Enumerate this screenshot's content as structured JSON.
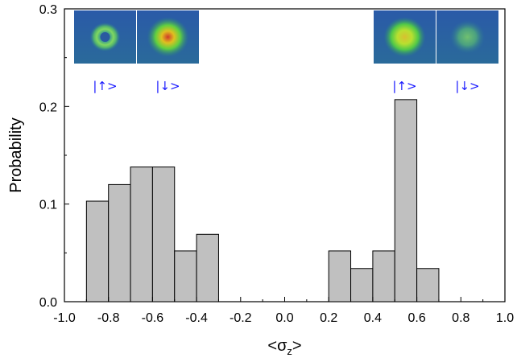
{
  "chart_data": {
    "type": "bar",
    "xlabel": "<σz>",
    "ylabel": "Probability",
    "xlim": [
      -1.0,
      1.0
    ],
    "ylim": [
      0.0,
      0.3
    ],
    "x_ticks": [
      "-1.0",
      "-0.8",
      "-0.6",
      "-0.4",
      "-0.2",
      "0.0",
      "0.2",
      "0.4",
      "0.6",
      "0.8",
      "1.0"
    ],
    "y_ticks": [
      "0.0",
      "0.1",
      "0.2",
      "0.3"
    ],
    "bin_width": 0.1,
    "bins": [
      {
        "x0": -0.9,
        "x1": -0.8,
        "value": 0.103
      },
      {
        "x0": -0.8,
        "x1": -0.7,
        "value": 0.12
      },
      {
        "x0": -0.7,
        "x1": -0.6,
        "value": 0.138
      },
      {
        "x0": -0.6,
        "x1": -0.5,
        "value": 0.138
      },
      {
        "x0": -0.5,
        "x1": -0.4,
        "value": 0.052
      },
      {
        "x0": -0.4,
        "x1": -0.3,
        "value": 0.069
      },
      {
        "x0": 0.2,
        "x1": 0.3,
        "value": 0.052
      },
      {
        "x0": 0.3,
        "x1": 0.4,
        "value": 0.034
      },
      {
        "x0": 0.4,
        "x1": 0.5,
        "value": 0.052
      },
      {
        "x0": 0.5,
        "x1": 0.6,
        "value": 0.207
      },
      {
        "x0": 0.6,
        "x1": 0.7,
        "value": 0.034
      }
    ],
    "bar_fill": "#c0c0c0",
    "bar_stroke": "#000000",
    "grid": false,
    "insets": [
      {
        "label": "|↑>",
        "spot": "ring-dim",
        "position": "top-left"
      },
      {
        "label": "|↓>",
        "spot": "bright",
        "position": "top-left"
      },
      {
        "label": "|↑>",
        "spot": "bright",
        "position": "top-right"
      },
      {
        "label": "|↓>",
        "spot": "faint",
        "position": "top-right"
      }
    ],
    "label_color": "#1a1aff"
  }
}
